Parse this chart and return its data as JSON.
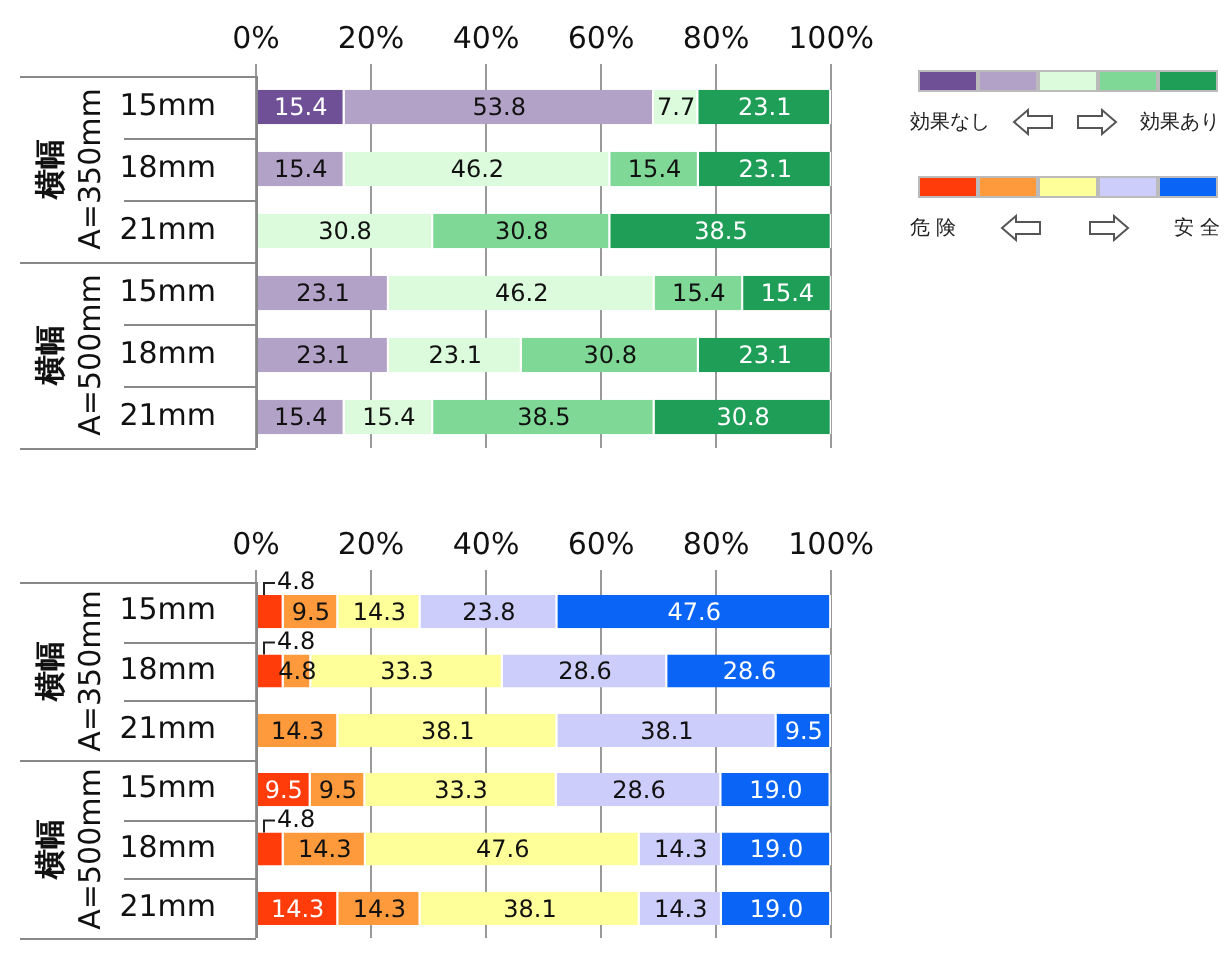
{
  "chart_data": [
    {
      "type": "bar",
      "orientation": "horizontal",
      "stacked": true,
      "data_labels": true,
      "grid": "x",
      "categories": [
        "15mm",
        "18mm",
        "21mm",
        "15mm",
        "18mm",
        "21mm"
      ],
      "xlim": [
        0,
        100
      ],
      "xticks": [
        {
          "value": 0,
          "label": "0%"
        },
        {
          "value": 20,
          "label": "20%"
        },
        {
          "value": 40,
          "label": "40%"
        },
        {
          "value": 60,
          "label": "60%"
        },
        {
          "value": 80,
          "label": "80%"
        },
        {
          "value": 100,
          "label": "100%"
        }
      ],
      "annotations": [
        "横幅 A=350mm",
        "横幅 A=500mm",
        "効果なし",
        "効果あり"
      ],
      "series": [
        {
          "color": "#6f5096",
          "values": [
            15.4,
            null,
            null,
            null,
            null,
            null
          ]
        },
        {
          "color": "#b3a2c8",
          "values": [
            53.8,
            15.4,
            null,
            23.1,
            23.1,
            15.4
          ]
        },
        {
          "color": "#dcfadc",
          "values": [
            7.7,
            46.2,
            30.8,
            46.2,
            23.1,
            15.4
          ]
        },
        {
          "color": "#7fd896",
          "values": [
            null,
            15.4,
            30.8,
            15.4,
            30.8,
            38.5
          ]
        },
        {
          "color": "#1f9e58",
          "values": [
            23.1,
            23.1,
            38.5,
            15.4,
            23.1,
            30.8
          ]
        }
      ]
    },
    {
      "type": "bar",
      "orientation": "horizontal",
      "stacked": true,
      "grid": "x",
      "categories": [
        "15mm",
        "18mm",
        "21mm",
        "15mm",
        "18mm",
        "21mm"
      ],
      "xlim": [
        0,
        100
      ],
      "xticks": [
        {
          "value": 0,
          "label": "0%"
        },
        {
          "value": 20,
          "label": "20%"
        },
        {
          "value": 40,
          "label": "40%"
        },
        {
          "value": 60,
          "label": "60%"
        },
        {
          "value": 80,
          "label": "80%"
        },
        {
          "value": 100,
          "label": "100%"
        }
      ],
      "annotations": [
        "横幅 A=350mm",
        "横幅 A=500mm",
        "危 険",
        "安 全"
      ],
      "series": [
        {
          "color": "#ff3c0a",
          "values": [
            4.8,
            4.8,
            null,
            9.5,
            4.8,
            14.3
          ],
          "value_labels": [
            "4.8",
            "4.8",
            null,
            "9.5",
            "4.8",
            "14.3"
          ]
        },
        {
          "color": "#ff9a3c",
          "values": [
            9.5,
            4.8,
            14.3,
            9.5,
            14.3,
            14.3
          ],
          "value_labels": [
            "9.5",
            "4.8",
            "14.3",
            "9.5",
            "14.3",
            "14.3"
          ]
        },
        {
          "color": "#ffff9a",
          "values": [
            14.3,
            33.3,
            38.1,
            33.3,
            47.6,
            38.1
          ],
          "value_labels": [
            "14.3",
            "33.3",
            "38.1",
            "33.3",
            "47.6",
            "38.1"
          ]
        },
        {
          "color": "#cccdfa",
          "values": [
            23.8,
            28.6,
            38.1,
            28.6,
            14.3,
            14.3
          ],
          "value_labels": [
            "23.8",
            "28.6",
            "38.1",
            "28.6",
            "14.3",
            "14.3"
          ]
        },
        {
          "color": "#0a64f5",
          "values": [
            47.6,
            28.6,
            9.5,
            19.0,
            19.0,
            19.0
          ],
          "value_labels": [
            "47.6",
            "28.6",
            "9.5",
            "19.0",
            "19.0",
            "19.0"
          ]
        }
      ]
    }
  ]
}
